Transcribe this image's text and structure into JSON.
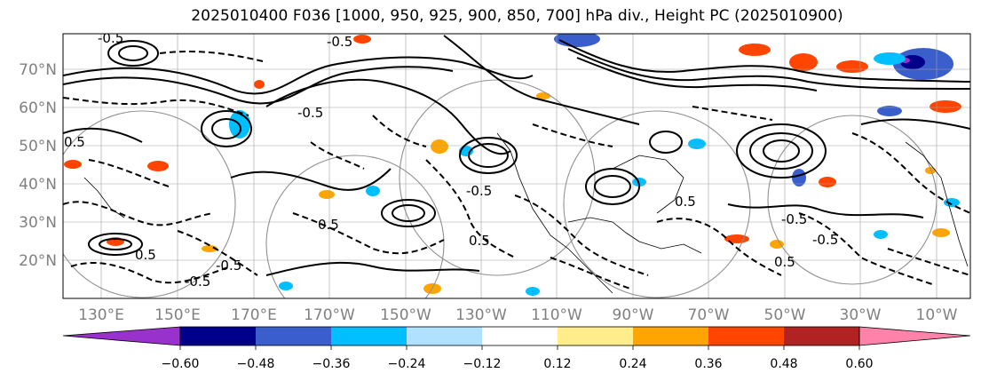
{
  "title": "2025010400 F036 [1000, 950, 925, 900, 850, 700] hPa div., Height PC (2025010900)",
  "map": {
    "lat_labels": [
      "70°N",
      "60°N",
      "50°N",
      "40°N",
      "30°N",
      "20°N"
    ],
    "lat_values": [
      70,
      60,
      50,
      40,
      30,
      20
    ],
    "lon_labels": [
      "130°E",
      "150°E",
      "170°E",
      "170°W",
      "150°W",
      "130°W",
      "110°W",
      "90°W",
      "70°W",
      "50°W",
      "30°W",
      "10°W"
    ],
    "contour_labels": [
      "0.5",
      "-0.5",
      "-0.5",
      "0.5",
      "0.5",
      "-0.5",
      "0.5",
      "-0.5",
      "0.5",
      "-0.5",
      "-0.5",
      "0.5",
      "-0.5",
      "-0.5"
    ]
  },
  "colorbar": {
    "tick_labels": [
      "−0.60",
      "−0.48",
      "−0.36",
      "−0.24",
      "−0.12",
      "0.12",
      "0.24",
      "0.36",
      "0.48",
      "0.60"
    ],
    "tick_values": [
      -0.6,
      -0.48,
      -0.36,
      -0.24,
      -0.12,
      0.12,
      0.24,
      0.36,
      0.48,
      0.6
    ],
    "colors": [
      "#9932cc",
      "#00008b",
      "#3a5fcd",
      "#00bfff",
      "#b0e2ff",
      "#ffffff",
      "#ffec8b",
      "#ffa500",
      "#ff4500",
      "#b22222",
      "#ff82ab"
    ]
  }
}
